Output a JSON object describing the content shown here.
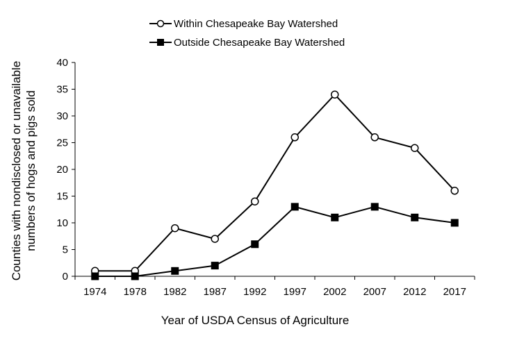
{
  "chart_data": {
    "type": "line",
    "title": "",
    "xlabel": "Year of USDA Census of Agriculture",
    "ylabel_line1": "Counties with nondisclosed or unavailable",
    "ylabel_line2": "numbers of hogs and pigs sold",
    "categories": [
      "1974",
      "1978",
      "1982",
      "1987",
      "1992",
      "1997",
      "2002",
      "2007",
      "2012",
      "2017"
    ],
    "ylim": [
      0,
      40
    ],
    "yticks": [
      "0",
      "5",
      "10",
      "15",
      "20",
      "25",
      "30",
      "35",
      "40"
    ],
    "grid": false,
    "legend_position": "top-center",
    "series": [
      {
        "name": "Within Chesapeake Bay Watershed",
        "marker": "circle-open",
        "color": "#000000",
        "values": [
          1,
          1,
          9,
          7,
          14,
          26,
          34,
          26,
          24,
          16
        ]
      },
      {
        "name": "Outside Chesapeake Bay Watershed",
        "marker": "square-filled",
        "color": "#000000",
        "values": [
          0,
          0,
          1,
          2,
          6,
          13,
          11,
          13,
          11,
          10
        ]
      }
    ]
  }
}
